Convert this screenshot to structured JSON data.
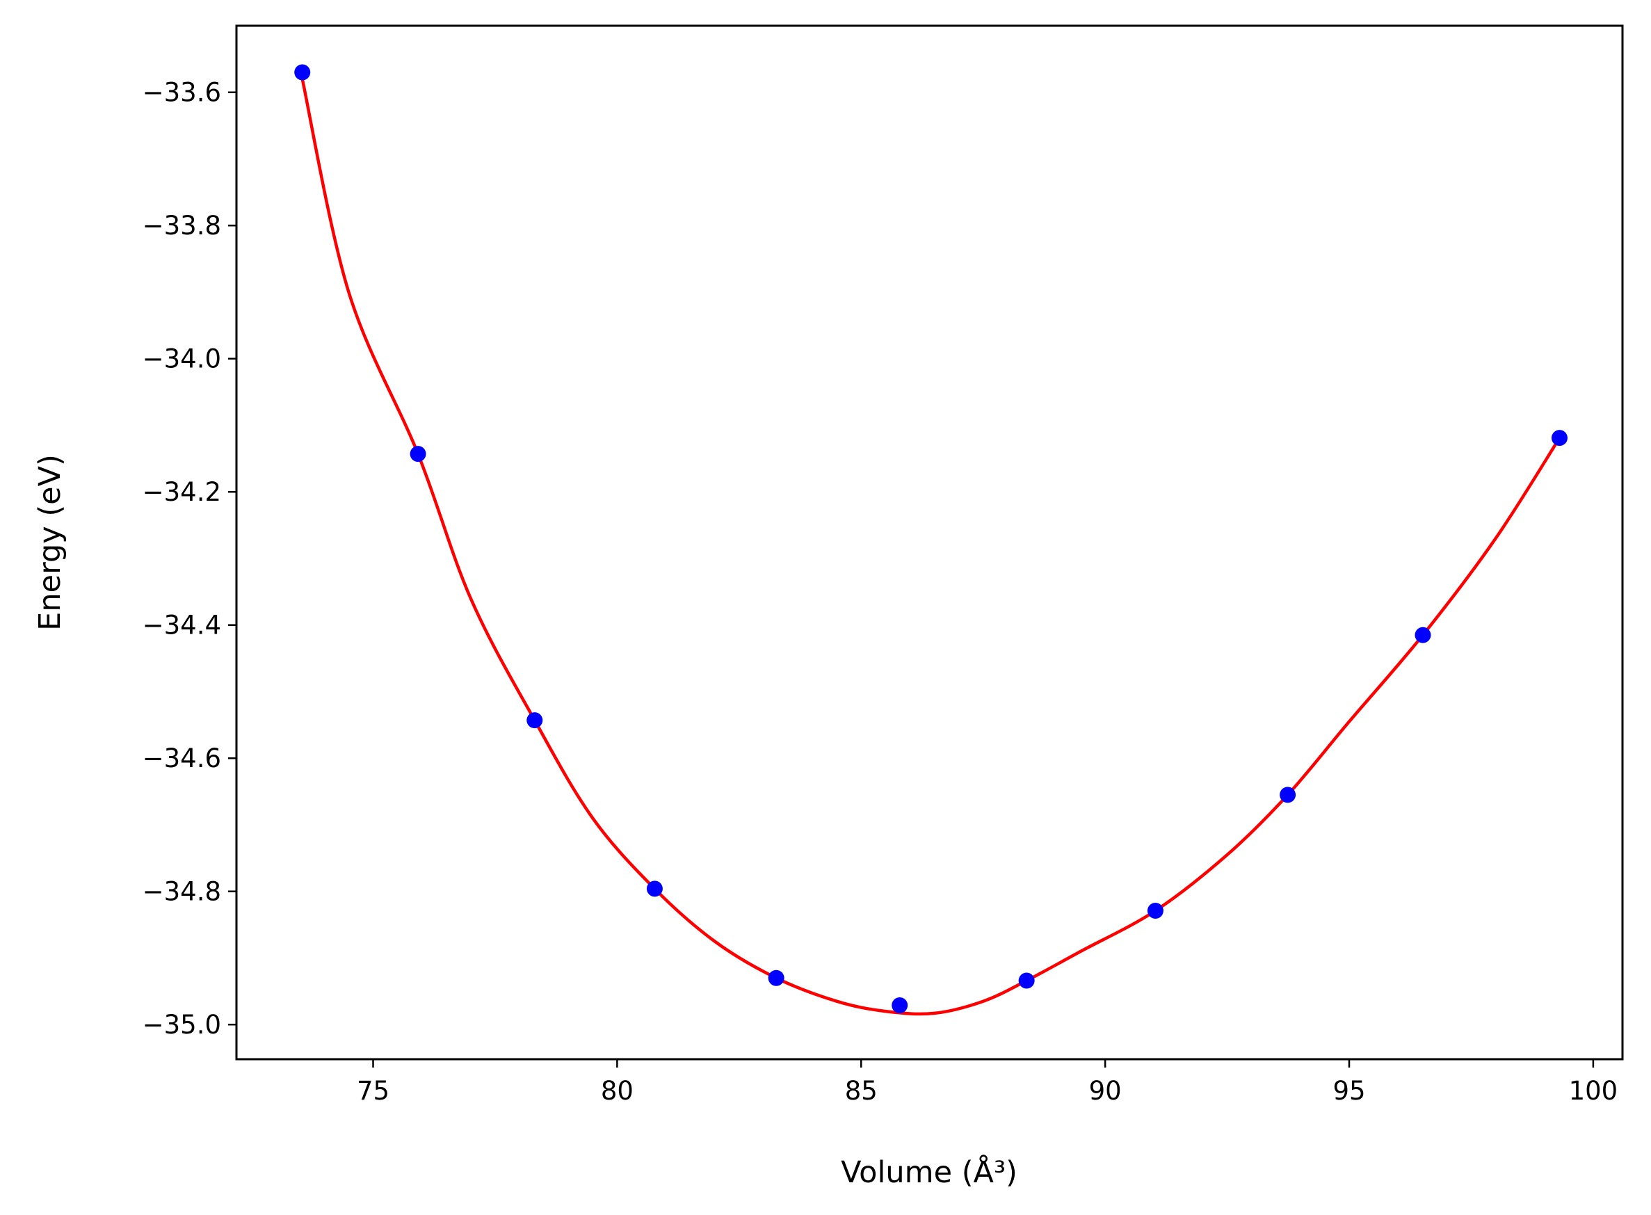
{
  "chart_data": {
    "type": "scatter",
    "xlabel": "Volume (Å³)",
    "ylabel": "Energy (eV)",
    "xlim": [
      72.2,
      100.6
    ],
    "ylim": [
      -35.052,
      -33.5
    ],
    "xticks": [
      75,
      80,
      85,
      90,
      95,
      100
    ],
    "xtick_labels": [
      "75",
      "80",
      "85",
      "90",
      "95",
      "100"
    ],
    "yticks": [
      -33.6,
      -33.8,
      -34.0,
      -34.2,
      -34.4,
      -34.6,
      -34.8,
      -35.0
    ],
    "ytick_labels": [
      "−33.6",
      "−33.8",
      "−34.0",
      "−34.2",
      "−34.4",
      "−34.6",
      "−34.8",
      "−35.0"
    ],
    "grid": false,
    "points": {
      "color": "#0000ff",
      "x": [
        73.55,
        75.92,
        78.31,
        80.77,
        83.26,
        85.79,
        88.39,
        91.03,
        93.74,
        96.51,
        99.31
      ],
      "y": [
        -33.57,
        -34.143,
        -34.543,
        -34.796,
        -34.93,
        -34.971,
        -34.934,
        -34.829,
        -34.655,
        -34.415,
        -34.119
      ]
    },
    "fit_curve": {
      "type": "line",
      "color": "#ff0000",
      "x": [
        73.55,
        74.5,
        75.92,
        77.0,
        78.31,
        79.5,
        80.77,
        82.0,
        83.26,
        84.5,
        85.5,
        86.5,
        87.5,
        88.39,
        89.5,
        91.03,
        92.5,
        93.74,
        95.0,
        96.51,
        98.0,
        99.31
      ],
      "y": [
        -33.58,
        -33.9,
        -34.143,
        -34.36,
        -34.543,
        -34.69,
        -34.796,
        -34.875,
        -34.93,
        -34.965,
        -34.98,
        -34.983,
        -34.965,
        -34.934,
        -34.89,
        -34.829,
        -34.745,
        -34.655,
        -34.545,
        -34.415,
        -34.27,
        -34.119
      ]
    }
  }
}
